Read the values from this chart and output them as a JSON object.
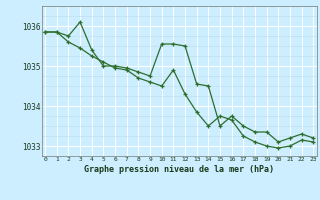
{
  "bg_color": "#cceeff",
  "grid_color_major": "#ffffff",
  "grid_color_minor": "#bbddee",
  "line_color": "#2d6e2d",
  "x_values": [
    0,
    1,
    2,
    3,
    4,
    5,
    6,
    7,
    8,
    9,
    10,
    11,
    12,
    13,
    14,
    15,
    16,
    17,
    18,
    19,
    20,
    21,
    22,
    23
  ],
  "series1": [
    1035.85,
    1035.85,
    1035.75,
    1036.1,
    1035.4,
    1035.0,
    1035.0,
    1034.95,
    1034.85,
    1034.75,
    1035.55,
    1035.55,
    1035.5,
    1034.55,
    1034.5,
    1033.5,
    1033.75,
    1033.5,
    1033.35,
    1033.35,
    1033.1,
    1033.2,
    1033.3,
    1033.2
  ],
  "series2": [
    1035.85,
    1035.85,
    1035.6,
    1035.45,
    1035.25,
    1035.1,
    1034.95,
    1034.9,
    1034.7,
    1034.6,
    1034.5,
    1034.9,
    1034.3,
    1033.85,
    1033.5,
    1033.75,
    1033.65,
    1033.25,
    1033.1,
    1033.0,
    1032.95,
    1033.0,
    1033.15,
    1033.1
  ],
  "ylim": [
    1032.75,
    1036.5
  ],
  "yticks": [
    1033,
    1034,
    1035,
    1036
  ],
  "xlabel": "Graphe pression niveau de la mer (hPa)"
}
